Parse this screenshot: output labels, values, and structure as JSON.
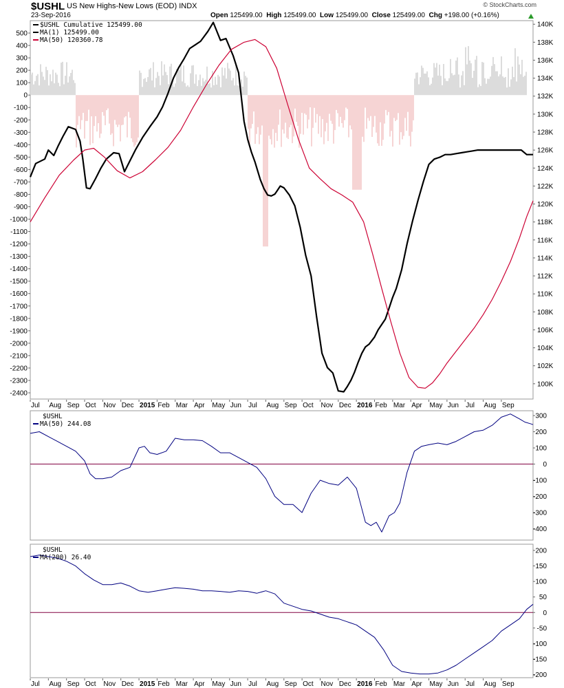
{
  "header": {
    "symbol": "$USHL",
    "name": "US New Highs-New Lows (EOD)",
    "exchange": "INDX",
    "date": "23-Sep-2016",
    "open_label": "Open",
    "open": "125499.00",
    "high_label": "High",
    "high": "125499.00",
    "low_label": "Low",
    "low": "125499.00",
    "close_label": "Close",
    "close": "125499.00",
    "chg_label": "Chg",
    "chg": "+198.00 (+0.16%)",
    "arrow_color": "#2a9a2a",
    "brand": "© StockCharts.com"
  },
  "chart_data": [
    {
      "type": "line",
      "panel": "main",
      "legend": [
        {
          "text": "$USHL Cumulative 125499.00",
          "color": "#000000"
        },
        {
          "text": "MA(1) 125499.00",
          "color": "#000000"
        },
        {
          "text": "MA(50) 120360.78",
          "color": "#cc0033"
        }
      ],
      "x_labels": [
        "Jul",
        "Aug",
        "Sep",
        "Oct",
        "Nov",
        "Dec",
        "2015",
        "Feb",
        "Mar",
        "Apr",
        "May",
        "Jun",
        "Jul",
        "Aug",
        "Sep",
        "Oct",
        "Nov",
        "Dec",
        "2016",
        "Feb",
        "Mar",
        "Apr",
        "May",
        "Jun",
        "Jul",
        "Aug",
        "Sep"
      ],
      "bold_x_labels": [
        "2015",
        "2016"
      ],
      "left_axis": {
        "ylim": [
          -2450,
          600
        ],
        "ticks": [
          500,
          400,
          300,
          200,
          100,
          0,
          -100,
          -200,
          -300,
          -400,
          -500,
          -600,
          -700,
          -800,
          -900,
          -1000,
          -1100,
          -1200,
          -1300,
          -1400,
          -1500,
          -1600,
          -1700,
          -1800,
          -1900,
          -2000,
          -2100,
          -2200,
          -2300,
          -2400
        ]
      },
      "right_axis": {
        "ylim": [
          98300,
          140400
        ],
        "ticks": [
          "140K",
          "138K",
          "136K",
          "134K",
          "132K",
          "130K",
          "128K",
          "126K",
          "124K",
          "122K",
          "120K",
          "118K",
          "116K",
          "114K",
          "112K",
          "110K",
          "108K",
          "106K",
          "104K",
          "102K",
          "100K"
        ]
      },
      "series": [
        {
          "name": "$USHL Cumulative",
          "axis": "right",
          "color": "#000000",
          "x": [
            0,
            0.3,
            0.8,
            1.0,
            1.3,
            1.55,
            1.8,
            2.1,
            2.5,
            2.75,
            2.9,
            3.1,
            3.3,
            3.6,
            3.9,
            4.2,
            4.6,
            4.9,
            5.2,
            5.5,
            5.8,
            6.2,
            6.6,
            7.0,
            7.3,
            7.6,
            7.9,
            8.2,
            8.5,
            8.8,
            9.1,
            9.4,
            9.8,
            10.1,
            10.5,
            10.8,
            11.2,
            11.5,
            11.8,
            12.0,
            12.2,
            12.4,
            12.7,
            12.9,
            13.1,
            13.3,
            13.5,
            13.6,
            13.8,
            14.0,
            14.3,
            14.6,
            14.9,
            15.2,
            15.5,
            15.8,
            16.1,
            16.4,
            16.7,
            17.0,
            17.3,
            17.5,
            17.7,
            17.9,
            18.1,
            18.3,
            18.5,
            18.7,
            19.0,
            19.2,
            19.4,
            19.6,
            19.8,
            20.0,
            20.2,
            20.5,
            20.8,
            21.1,
            21.4,
            21.7,
            22.0,
            22.3,
            22.6,
            22.9,
            23.2,
            23.5,
            23.8,
            24.1,
            24.4,
            24.7,
            25.0,
            25.3,
            25.6,
            25.9,
            26.2,
            26.5,
            26.8,
            27.1,
            27.4,
            27.6,
            27.75
          ],
          "y": [
            123000,
            124500,
            125000,
            126000,
            125400,
            126500,
            127500,
            128600,
            128300,
            127000,
            125000,
            121800,
            121700,
            122800,
            124000,
            125000,
            125700,
            125600,
            123600,
            124800,
            126000,
            127400,
            128600,
            129700,
            130800,
            132300,
            134000,
            135200,
            136200,
            137300,
            137700,
            138100,
            139200,
            140200,
            138200,
            138400,
            136500,
            134600,
            129200,
            127200,
            125800,
            124700,
            122700,
            121700,
            121000,
            120900,
            121100,
            121400,
            122000,
            121800,
            121000,
            119800,
            117400,
            114300,
            112000,
            107500,
            103400,
            101800,
            101200,
            99200,
            99100,
            99700,
            100400,
            101300,
            102400,
            103400,
            104100,
            104400,
            105200,
            106000,
            106600,
            107200,
            108400,
            109600,
            110600,
            112700,
            115600,
            118100,
            120400,
            122500,
            124400,
            125000,
            125200,
            125500,
            125500,
            125600,
            125700,
            125800,
            125900,
            125999,
            126000,
            126000,
            126000,
            126000,
            126000,
            126000,
            126000,
            126000,
            125499,
            125499,
            125499
          ]
        },
        {
          "name": "MA(50)",
          "axis": "right",
          "color": "#cc0033",
          "x": [
            0,
            0.8,
            1.6,
            2.4,
            3.0,
            3.5,
            4.1,
            4.8,
            5.5,
            6.2,
            6.9,
            7.6,
            8.3,
            9.0,
            9.7,
            10.4,
            11.1,
            11.8,
            12.4,
            13.0,
            13.6,
            14.2,
            14.8,
            15.4,
            16.0,
            16.6,
            17.2,
            17.8,
            18.4,
            18.9,
            19.4,
            19.9,
            20.4,
            20.9,
            21.4,
            21.8,
            22.2,
            22.6,
            23.0,
            23.5,
            24.0,
            24.5,
            25.0,
            25.5,
            26.0,
            26.5,
            27.0,
            27.4,
            27.75
          ],
          "y": [
            118000,
            120700,
            123200,
            124900,
            126000,
            126200,
            125200,
            123700,
            122900,
            123600,
            124900,
            126300,
            128200,
            130800,
            133200,
            135400,
            137200,
            138000,
            138300,
            137500,
            135100,
            131100,
            127200,
            124000,
            122800,
            121700,
            121000,
            120200,
            118000,
            114400,
            110600,
            106900,
            103400,
            100700,
            99600,
            99500,
            100100,
            101100,
            102300,
            103600,
            104900,
            106200,
            107700,
            109400,
            111400,
            113600,
            116200,
            118600,
            120360.78
          ]
        }
      ]
    },
    {
      "type": "line",
      "panel": "ma50",
      "title": "$USHL",
      "legend": [
        {
          "text": "MA(50) 244.08",
          "color": "#000080"
        }
      ],
      "ylim": [
        -470,
        330
      ],
      "ticks": [
        300,
        200,
        100,
        0,
        -100,
        -200,
        -300,
        -400
      ],
      "zero_line_color": "#800040",
      "series": [
        {
          "name": "MA(50)",
          "color": "#000080",
          "x": [
            0,
            0.5,
            1.0,
            1.5,
            2.0,
            2.5,
            3.0,
            3.3,
            3.6,
            4.0,
            4.5,
            5.0,
            5.5,
            6.0,
            6.3,
            6.6,
            7.0,
            7.5,
            8.0,
            8.5,
            9.0,
            9.5,
            10.0,
            10.5,
            11.0,
            11.5,
            12.0,
            12.5,
            13.0,
            13.5,
            14.0,
            14.5,
            15.0,
            15.5,
            16.0,
            16.5,
            17.0,
            17.5,
            18.0,
            18.5,
            18.8,
            19.1,
            19.4,
            19.8,
            20.1,
            20.4,
            20.8,
            21.2,
            21.6,
            22.0,
            22.5,
            23.0,
            23.5,
            24.0,
            24.5,
            25.0,
            25.5,
            26.0,
            26.5,
            27.0,
            27.3,
            27.6,
            27.75
          ],
          "y": [
            190,
            200,
            170,
            140,
            110,
            80,
            20,
            -60,
            -90,
            -90,
            -80,
            -40,
            -20,
            100,
            110,
            70,
            60,
            80,
            160,
            150,
            150,
            145,
            110,
            70,
            70,
            40,
            10,
            -20,
            -90,
            -200,
            -250,
            -250,
            -300,
            -180,
            -100,
            -120,
            -130,
            -80,
            -150,
            -360,
            -380,
            -360,
            -420,
            -320,
            -300,
            -240,
            -50,
            80,
            110,
            120,
            130,
            120,
            140,
            170,
            200,
            210,
            240,
            290,
            310,
            280,
            260,
            250,
            244.08
          ]
        }
      ]
    },
    {
      "type": "line",
      "panel": "ma200",
      "title": "$USHL",
      "legend": [
        {
          "text": "MA(200) 26.40",
          "color": "#000080"
        }
      ],
      "ylim": [
        -210,
        220
      ],
      "ticks": [
        200,
        150,
        100,
        50,
        0,
        -50,
        -100,
        -150,
        -200
      ],
      "zero_line_color": "#800040",
      "series": [
        {
          "name": "MA(200)",
          "color": "#000080",
          "x": [
            0,
            0.5,
            1.0,
            1.5,
            2.0,
            2.5,
            3.0,
            3.5,
            4.0,
            4.5,
            5.0,
            5.5,
            6.0,
            6.5,
            7.0,
            7.5,
            8.0,
            8.5,
            9.0,
            9.5,
            10.0,
            10.5,
            11.0,
            11.5,
            12.0,
            12.5,
            13.0,
            13.5,
            14.0,
            14.5,
            15.0,
            15.5,
            16.0,
            16.5,
            17.0,
            17.5,
            18.0,
            18.5,
            19.0,
            19.5,
            20.0,
            20.5,
            21.0,
            21.5,
            22.0,
            22.5,
            23.0,
            23.5,
            24.0,
            24.5,
            25.0,
            25.5,
            26.0,
            26.5,
            27.0,
            27.4,
            27.75
          ],
          "y": [
            180,
            185,
            180,
            175,
            165,
            150,
            125,
            105,
            90,
            90,
            95,
            85,
            70,
            65,
            70,
            75,
            80,
            78,
            75,
            70,
            70,
            68,
            65,
            70,
            68,
            62,
            70,
            60,
            30,
            20,
            10,
            5,
            -5,
            -15,
            -20,
            -30,
            -40,
            -60,
            -80,
            -120,
            -170,
            -190,
            -195,
            -198,
            -198,
            -195,
            -185,
            -170,
            -150,
            -130,
            -110,
            -90,
            -60,
            -40,
            -20,
            10,
            26.4
          ]
        }
      ]
    }
  ]
}
